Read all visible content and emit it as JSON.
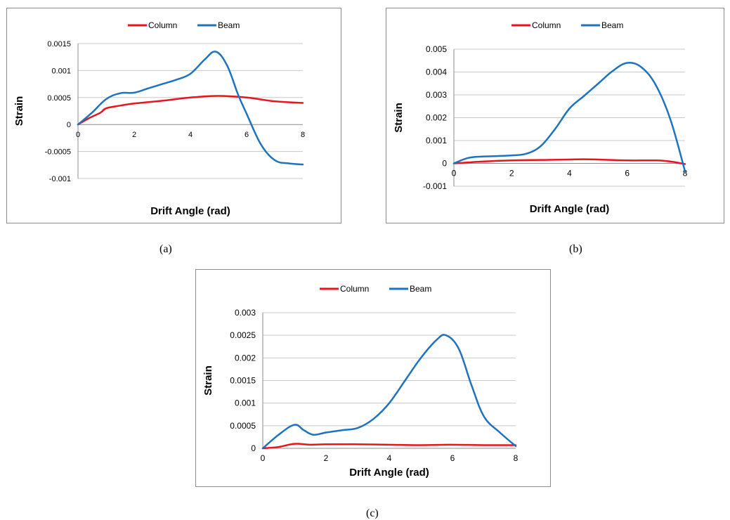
{
  "colors": {
    "column": "#e8141e",
    "beam": "#1e73be",
    "grid": "#c8c8c8",
    "axis": "#8c8c8c"
  },
  "chart_data": [
    {
      "type": "line",
      "caption": "(a)",
      "xlabel": "Drift Angle (rad)",
      "ylabel": "Strain",
      "xlim": [
        0,
        8
      ],
      "ylim": [
        -0.001,
        0.0015
      ],
      "xticks": [
        "0",
        "2",
        "4",
        "6",
        "8"
      ],
      "yticks": [
        "0.0015",
        "0.001",
        "0.0005",
        "0",
        "-0.0005",
        "-0.001"
      ],
      "grid": true,
      "legend": "top",
      "series": [
        {
          "name": "Column",
          "x": [
            0,
            0.4,
            0.8,
            1.0,
            1.5,
            2,
            3,
            4,
            5,
            6,
            7,
            8
          ],
          "y": [
            0,
            0.00012,
            0.00022,
            0.0003,
            0.00035,
            0.00039,
            0.00044,
            0.0005,
            0.00053,
            0.0005,
            0.00043,
            0.0004
          ]
        },
        {
          "name": "Beam",
          "x": [
            0,
            0.5,
            1.0,
            1.5,
            2.0,
            2.5,
            3.0,
            3.5,
            4.0,
            4.5,
            4.9,
            5.3,
            5.7,
            6.0,
            6.5,
            7.0,
            7.5,
            8.0
          ],
          "y": [
            0,
            0.00022,
            0.00047,
            0.00058,
            0.00059,
            0.00067,
            0.00075,
            0.00083,
            0.00094,
            0.0012,
            0.00135,
            0.0011,
            0.00055,
            0.0002,
            -0.00036,
            -0.00066,
            -0.00072,
            -0.00074
          ]
        }
      ]
    },
    {
      "type": "line",
      "caption": "(b)",
      "xlabel": "Drift Angle (rad)",
      "ylabel": "Strain",
      "xlim": [
        0,
        8
      ],
      "ylim": [
        -0.001,
        0.005
      ],
      "xticks": [
        "0",
        "2",
        "4",
        "6",
        "8"
      ],
      "yticks": [
        "0.005",
        "0.004",
        "0.003",
        "0.002",
        "0.001",
        "0",
        "-0.001"
      ],
      "grid": true,
      "legend": "top",
      "series": [
        {
          "name": "Column",
          "x": [
            0,
            1,
            2,
            3,
            4,
            4.5,
            5,
            6,
            7,
            7.5,
            8
          ],
          "y": [
            0,
            8e-05,
            0.00013,
            0.00015,
            0.00017,
            0.00018,
            0.00017,
            0.00013,
            0.00013,
            8e-05,
            -3e-05
          ]
        },
        {
          "name": "Beam",
          "x": [
            0,
            0.5,
            1.0,
            1.5,
            2.0,
            2.5,
            3.0,
            3.5,
            4.0,
            4.5,
            5.0,
            5.5,
            6.0,
            6.5,
            7.0,
            7.5,
            8.0
          ],
          "y": [
            0,
            0.00024,
            0.0003,
            0.00032,
            0.00035,
            0.00042,
            0.00075,
            0.0015,
            0.0024,
            0.00295,
            0.0035,
            0.00405,
            0.0044,
            0.0042,
            0.0034,
            0.0019,
            -0.00035
          ]
        }
      ]
    },
    {
      "type": "line",
      "caption": "(c)",
      "xlabel": "Drift Angle (rad)",
      "ylabel": "Strain",
      "xlim": [
        0,
        8
      ],
      "ylim": [
        0,
        0.003
      ],
      "xticks": [
        "0",
        "2",
        "4",
        "6",
        "8"
      ],
      "yticks": [
        "0.003",
        "0.0025",
        "0.002",
        "0.0015",
        "0.001",
        "0.0005",
        "0"
      ],
      "grid": true,
      "legend": "top",
      "series": [
        {
          "name": "Column",
          "x": [
            0,
            0.5,
            1.0,
            1.5,
            2,
            3,
            4,
            5,
            6,
            7,
            8
          ],
          "y": [
            0,
            3e-05,
            0.0001,
            8e-05,
            9e-05,
            9e-05,
            8e-05,
            7e-05,
            8e-05,
            7e-05,
            7e-05
          ]
        },
        {
          "name": "Beam",
          "x": [
            0,
            0.5,
            1.0,
            1.3,
            1.6,
            2.0,
            2.5,
            3.0,
            3.5,
            4.0,
            4.5,
            5.0,
            5.5,
            5.8,
            6.2,
            6.6,
            7.0,
            7.5,
            8.0
          ],
          "y": [
            0,
            0.0003,
            0.00052,
            0.0004,
            0.0003,
            0.00035,
            0.0004,
            0.00045,
            0.00065,
            0.001,
            0.0015,
            0.002,
            0.0024,
            0.0025,
            0.0022,
            0.0014,
            0.0007,
            0.00035,
            5e-05
          ]
        }
      ]
    }
  ]
}
